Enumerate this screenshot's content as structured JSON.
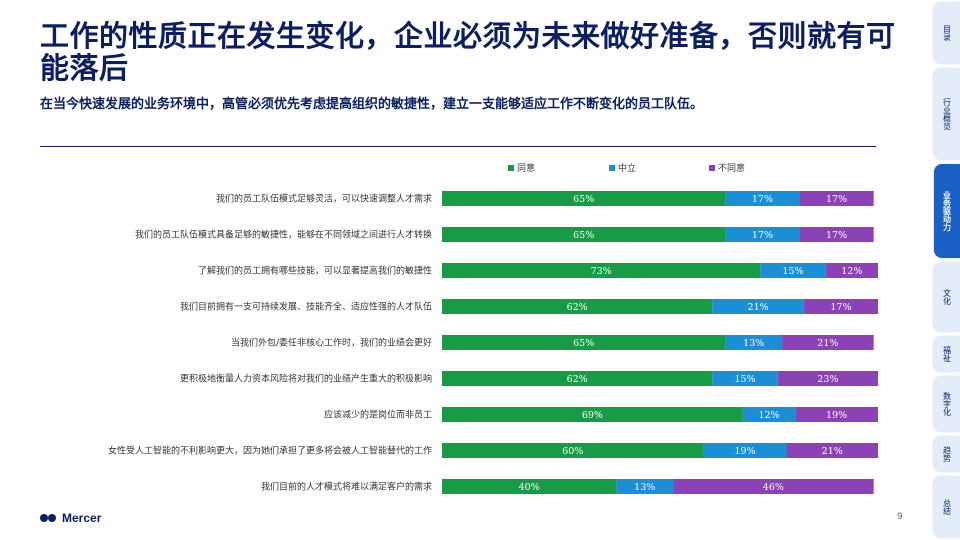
{
  "page": {
    "title": "工作的性质正在发生变化，企业必须为未来做好准备，否则就有可能落后",
    "subtitle": "在当今快速发展的业务环境中，高管必须优先考虑提高组织的敏捷性，建立一支能够适应工作不断变化的员工队伍。",
    "page_number": "9",
    "logo_text": "Mercer"
  },
  "side_nav": [
    {
      "label": "目录",
      "active": false
    },
    {
      "label": "行业概览",
      "active": false
    },
    {
      "label": "业务驱动力",
      "active": true
    },
    {
      "label": "文化",
      "active": false
    },
    {
      "label": "福祉",
      "active": false
    },
    {
      "label": "数字化",
      "active": false
    },
    {
      "label": "趋势",
      "active": false
    },
    {
      "label": "总结",
      "active": false
    }
  ],
  "colors": {
    "agree": "#169c47",
    "neutral": "#1a8fd6",
    "disagree": "#8a42b5",
    "title": "#0b1e63"
  },
  "chart_data": {
    "type": "bar",
    "orientation": "horizontal-stacked-100",
    "legend_position": "top",
    "xlim": [
      0,
      100
    ],
    "categories": [
      "我们的员工队伍模式足够灵活，可以快速调整人才需求",
      "我们的员工队伍模式具备足够的敏捷性，能够在不同领域之间进行人才转换",
      "了解我们的员工拥有哪些技能，可以显著提高我们的敏捷性",
      "我们目前拥有一支可持续发展、技能齐全、适应性强的人才队伍",
      "当我们外包/委任非核心工作时，我们的业绩会更好",
      "更积极地衡量人力资本风险将对我们的业绩产生重大的积极影响",
      "应该减少的是岗位而非员工",
      "女性受人工智能的不利影响更大，因为她们承担了更多将会被人工智能替代的工作",
      "我们目前的人才模式将难以满足客户的需求"
    ],
    "series": [
      {
        "name": "同意",
        "values": [
          65,
          65,
          73,
          62,
          65,
          62,
          69,
          60,
          40
        ]
      },
      {
        "name": "中立",
        "values": [
          17,
          17,
          15,
          21,
          13,
          15,
          12,
          19,
          13
        ]
      },
      {
        "name": "不同意",
        "values": [
          17,
          17,
          12,
          17,
          21,
          23,
          19,
          21,
          46
        ]
      }
    ]
  }
}
